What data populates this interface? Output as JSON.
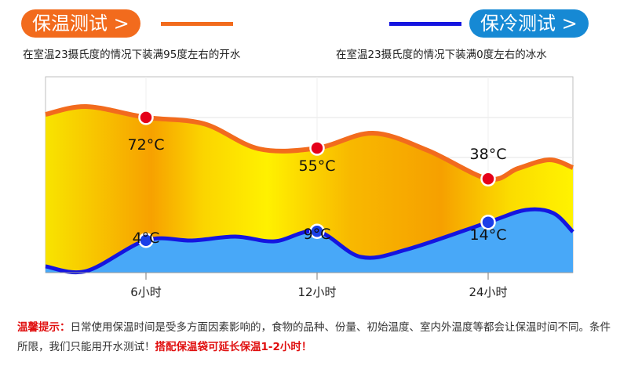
{
  "header": {
    "warm_title": "保温测试 >",
    "cold_title": "保冷测试 >",
    "warm_desc": "在室温23摄氏度的情况下装满95度左右的开水",
    "cold_desc": "在室温23摄氏度的情况下装满0度左右的冰水",
    "colors": {
      "warm": "#f26b1d",
      "cold": "#1515e0",
      "cold_fill": "#48a8f8"
    }
  },
  "chart_data": {
    "type": "area",
    "categories": [
      "6小时",
      "12小时",
      "24小时"
    ],
    "unit": "°C",
    "series": [
      {
        "values": [
          72,
          55,
          38
        ],
        "labels": [
          "72°C",
          "55°C",
          "38°C"
        ],
        "color": "#e5001a"
      },
      {
        "values": [
          4,
          9,
          14
        ],
        "labels": [
          "4°C",
          "9°C",
          "14°C"
        ],
        "color": "#1a3fe8"
      }
    ],
    "grid": true
  },
  "note": {
    "label": "温馨提示：",
    "text": "日常使用保温时间是受多方面因素影响的，食物的品种、份量、初始温度、室内外温度等都会让保温时间不同。条件所限，我们只能用开水测试！",
    "highlight": "搭配保温袋可延长保温1-2小时！"
  }
}
